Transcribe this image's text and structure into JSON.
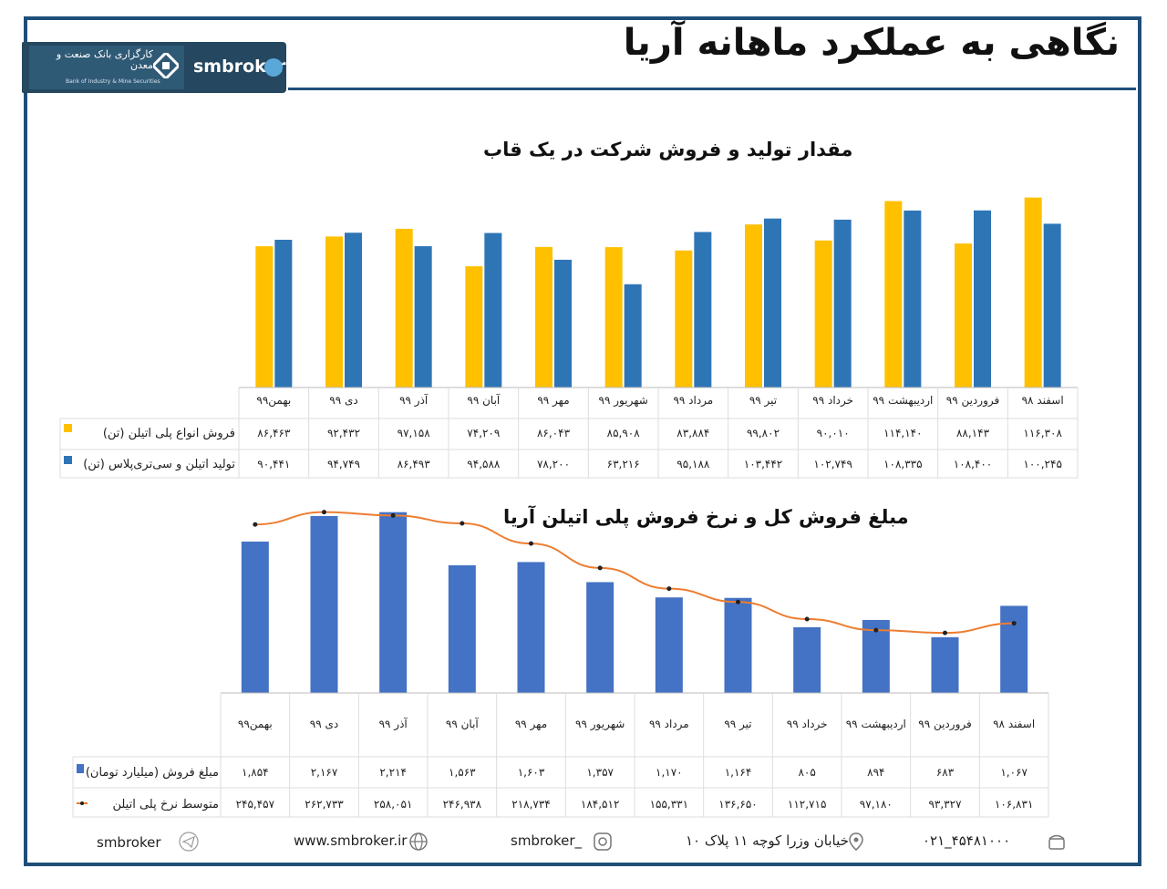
{
  "header": {
    "title": "نگاهی به عملکرد ماهانه آریا",
    "logo_bank_fa": "کارگزاری بانک صنعت و معدن",
    "logo_bank_en": "Bank of Industry & Mine Securities",
    "logo_handle": "smbroker"
  },
  "colors": {
    "frame": "#1f4e79",
    "yellow_series": "#ffc000",
    "blue_series": "#2e75b6",
    "bar_series": "#4472c4",
    "line_series": "#ed7d31"
  },
  "chart_data": [
    {
      "type": "bar",
      "title": "مقدار تولید و فروش شرکت در یک قاب",
      "categories": [
        "اسفند ۹۸",
        "فروردین ۹۹",
        "اردیبهشت ۹۹",
        "خرداد ۹۹",
        "تیر ۹۹",
        "مرداد ۹۹",
        "شهریور ۹۹",
        "مهر ۹۹",
        "آبان ۹۹",
        "آذر ۹۹",
        "دی ۹۹",
        "بهمن۹۹"
      ],
      "series": [
        {
          "name": "فروش انواع پلی اتیلن (تن)",
          "values": [
            116308,
            88143,
            114140,
            90010,
            99802,
            83884,
            85908,
            86043,
            74209,
            97158,
            92432,
            86463
          ],
          "labels": [
            "۱۱۶,۳۰۸",
            "۸۸,۱۴۳",
            "۱۱۴,۱۴۰",
            "۹۰,۰۱۰",
            "۹۹,۸۰۲",
            "۸۳,۸۸۴",
            "۸۵,۹۰۸",
            "۸۶,۰۴۳",
            "۷۴,۲۰۹",
            "۹۷,۱۵۸",
            "۹۲,۴۳۲",
            "۸۶,۴۶۳"
          ]
        },
        {
          "name": "تولید اتیلن و سی‌تری‌پلاس (تن)",
          "values": [
            100245,
            108400,
            108335,
            102749,
            103442,
            95188,
            63216,
            78200,
            94588,
            86493,
            94749,
            90441
          ],
          "labels": [
            "۱۰۰,۲۴۵",
            "۱۰۸,۴۰۰",
            "۱۰۸,۳۳۵",
            "۱۰۲,۷۴۹",
            "۱۰۳,۴۴۲",
            "۹۵,۱۸۸",
            "۶۳,۲۱۶",
            "۷۸,۲۰۰",
            "۹۴,۵۸۸",
            "۸۶,۴۹۳",
            "۹۴,۷۴۹",
            "۹۰,۴۴۱"
          ]
        }
      ],
      "ylim": [
        0,
        120000
      ]
    },
    {
      "type": "bar+line",
      "title": "مبلغ فروش کل و نرخ فروش پلی اتیلن آریا",
      "categories": [
        "اسفند ۹۸",
        "فروردین ۹۹",
        "اردیبهشت ۹۹",
        "خرداد ۹۹",
        "تیر ۹۹",
        "مرداد ۹۹",
        "شهریور ۹۹",
        "مهر ۹۹",
        "آبان ۹۹",
        "آذر ۹۹",
        "دی ۹۹",
        "بهمن۹۹"
      ],
      "series": [
        {
          "name": "مبلغ فروش (میلیارد تومان)",
          "type": "bar",
          "values": [
            1067,
            683,
            894,
            805,
            1164,
            1170,
            1357,
            1603,
            1563,
            2214,
            2167,
            1854
          ],
          "labels": [
            "۱,۰۶۷",
            "۶۸۳",
            "۸۹۴",
            "۸۰۵",
            "۱,۱۶۴",
            "۱,۱۷۰",
            "۱,۳۵۷",
            "۱,۶۰۳",
            "۱,۵۶۳",
            "۲,۲۱۴",
            "۲,۱۶۷",
            "۱,۸۵۴"
          ]
        },
        {
          "name": "متوسط نرخ پلی اتیلن",
          "type": "line",
          "values": [
            106831,
            93327,
            97180,
            112715,
            136650,
            155331,
            184512,
            218734,
            246938,
            258051,
            262733,
            245457
          ],
          "labels": [
            "۱۰۶,۸۳۱",
            "۹۳,۳۲۷",
            "۹۷,۱۸۰",
            "۱۱۲,۷۱۵",
            "۱۳۶,۶۵۰",
            "۱۵۵,۳۳۱",
            "۱۸۴,۵۱۲",
            "۲۱۸,۷۳۴",
            "۲۴۶,۹۳۸",
            "۲۵۸,۰۵۱",
            "۲۶۲,۷۳۳",
            "۲۴۵,۴۵۷"
          ]
        }
      ]
    }
  ],
  "footer": {
    "phone": "۰۲۱_۴۵۴۸۱۰۰۰",
    "address": "خیابان وزرا کوچه ۱۱ پلاک ۱۰",
    "instagram": "smbroker_",
    "website": "www.smbroker.ir",
    "telegram": "smbroker"
  }
}
